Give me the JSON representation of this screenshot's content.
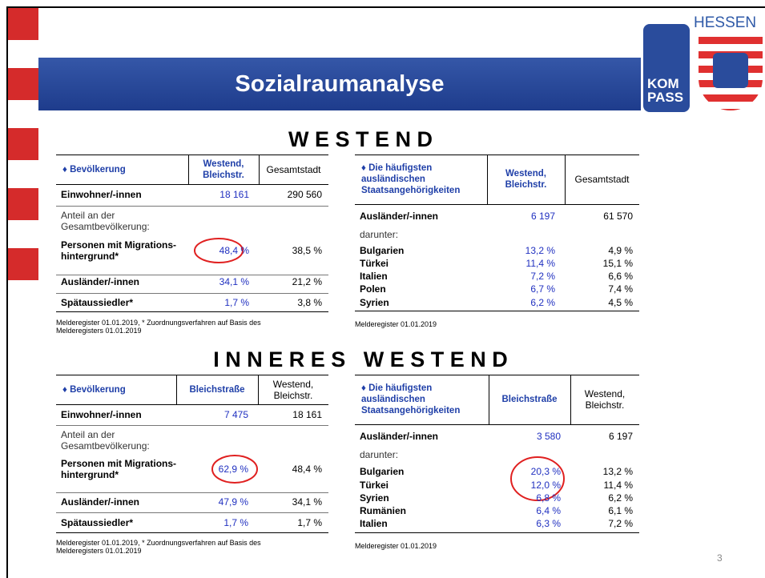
{
  "title": "Sozialraumanalyse",
  "logo": {
    "name": "HESSEN",
    "lines": [
      "KOM",
      "PASS"
    ]
  },
  "sections": [
    {
      "heading": "W E S T E N D",
      "tables": [
        {
          "header": [
            "♦ Bevölkerung",
            "Westend, Bleichstr.",
            "Gesamtstadt"
          ],
          "rows": [
            [
              "Einwohner/-innen",
              "18 161",
              "290 560"
            ],
            [
              "Anteil an der Gesamtbevölkerung:"
            ],
            [
              "Personen mit Migrations- hintergrund*",
              "48,4 %",
              "38,5 %"
            ],
            [
              "Ausländer/-innen",
              "34,1 %",
              "21,2 %"
            ],
            [
              "Spätaussiedler*",
              "1,7 %",
              "3,8 %"
            ]
          ],
          "note": "Melderegister 01.01.2019, * Zuordnungsverfahren auf Basis des Melderegisters 01.01.2019"
        },
        {
          "header": [
            "♦ Die häufigsten ausländischen Staatsangehörigkeiten",
            "Westend, Bleichstr.",
            "Gesamtstadt"
          ],
          "rows": [
            [
              "Ausländer/-innen",
              "6 197",
              "61 570"
            ],
            [
              "darunter:"
            ],
            [
              "Bulgarien",
              "13,2 %",
              "4,9 %"
            ],
            [
              "Türkei",
              "11,4 %",
              "15,1 %"
            ],
            [
              "Italien",
              "7,2 %",
              "6,6 %"
            ],
            [
              "Polen",
              "6,7 %",
              "7,4 %"
            ],
            [
              "Syrien",
              "6,2 %",
              "4,5 %"
            ]
          ],
          "note": "Melderegister 01.01.2019"
        }
      ]
    },
    {
      "heading": "I N N E R E S   W E S T E N D",
      "tables": [
        {
          "header": [
            "♦ Bevölkerung",
            "Bleichstraße",
            "Westend, Bleichstr."
          ],
          "rows": [
            [
              "Einwohner/-innen",
              "7 475",
              "18 161"
            ],
            [
              "Anteil an der Gesamtbevölkerung:"
            ],
            [
              "Personen mit Migrations- hintergrund*",
              "62,9 %",
              "48,4 %"
            ],
            [
              "Ausländer/-innen",
              "47,9 %",
              "34,1 %"
            ],
            [
              "Spätaussiedler*",
              "1,7 %",
              "1,7 %"
            ]
          ],
          "note": "Melderegister 01.01.2019, * Zuordnungsverfahren auf Basis des Melderegisters 01.01.2019"
        },
        {
          "header": [
            "♦ Die häufigsten ausländischen Staatsangehörigkeiten",
            "Bleichstraße",
            "Westend, Bleichstr."
          ],
          "rows": [
            [
              "Ausländer/-innen",
              "3 580",
              "6 197"
            ],
            [
              "darunter:"
            ],
            [
              "Bulgarien",
              "20,3 %",
              "13,2 %"
            ],
            [
              "Türkei",
              "12,0 %",
              "11,4 %"
            ],
            [
              "Syrien",
              "6,8 %",
              "6,2 %"
            ],
            [
              "Rumänien",
              "6,4 %",
              "6,1 %"
            ],
            [
              "Italien",
              "6,3 %",
              "7,2 %"
            ]
          ],
          "note": "Melderegister 01.01.2019"
        }
      ]
    }
  ],
  "page_number": "3"
}
